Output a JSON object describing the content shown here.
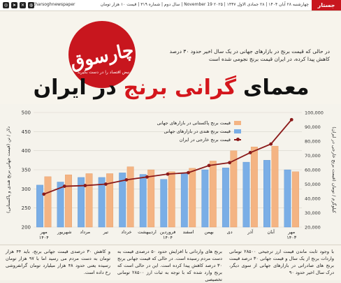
{
  "topbar": {
    "handle": "Charsoghnewspaper",
    "dateline": "چهارشنبه ۲۸ آبان ۱۴۰۴ | ۲۸ جمادی الاول ۱۴۴۷ | ۲۰۲۵ November 19 | سال دوم | شماره ۳۱۹ | قیمت ۱۰ هزار تومان",
    "tag": "جستار",
    "icon_names": [
      "instagram-icon",
      "telegram-icon",
      "x-icon",
      "web-icon"
    ]
  },
  "logo": {
    "name": "چارسوق",
    "slogan": "نبض اقتصاد را در دست بگیرید"
  },
  "lede": "در حالی که قیمت برنج در بازارهای جهانی در یک سال اخیر حدود ۳۰ درصد کاهش پیدا کرده، در ایران قیمت برنج نجومی شده است",
  "headline": {
    "part1": "معمای",
    "accent": "گرانی برنج",
    "part2": "در ایران"
  },
  "chart_data": {
    "type": "bar",
    "categories": [
      "مهر ۱۴۰۳",
      "آبان",
      "آذر",
      "دی",
      "بهمن",
      "اسفند",
      "فروردین ۱۴۰۴",
      "اردیبهشت",
      "خرداد",
      "تیر",
      "مرداد",
      "شهریور",
      "مهر ۱۴۰۴"
    ],
    "category_order": "right-to-left",
    "y_left": {
      "label": "دلار / تن (قیمت جهانی برنج هندی و پاکستانی)",
      "ticks": [
        200,
        250,
        300,
        350,
        400,
        450,
        500
      ],
      "lim": [
        200,
        500
      ]
    },
    "y_right": {
      "label": "کیلوگرم / تومان (قیمت برنج خارجی در ایران)",
      "ticks": [
        20000,
        30000,
        40000,
        50000,
        60000,
        70000,
        80000,
        90000,
        100000
      ],
      "lim": [
        20000,
        100000
      ]
    },
    "series": [
      {
        "name": "قیمت برنج پاکستانی در بازارهای جهانی",
        "axis": "left",
        "color": "#f4b483",
        "values": [
          345,
          412,
          410,
          400,
          373,
          354,
          345,
          350,
          358,
          340,
          340,
          337,
          332
        ]
      },
      {
        "name": "قیمت برنج هندی در بازارهای جهانی",
        "axis": "left",
        "color": "#7aaee6",
        "values": [
          350,
          375,
          370,
          355,
          350,
          340,
          325,
          338,
          342,
          330,
          330,
          318,
          310
        ]
      },
      {
        "name": "قیمت برنج خارجی در ایران",
        "axis": "right",
        "color": "#8b1a1a",
        "type": "line",
        "values": [
          95000,
          78000,
          72000,
          65000,
          63000,
          58000,
          57000,
          55000,
          53000,
          50000,
          49000,
          48500,
          43000
        ]
      }
    ],
    "grid": true,
    "legend": "top-center"
  },
  "columns": [
    "با وجود ثابت ماندن قیمت ارز ترجیحی ۲۸۵۰۰ تومانی واردات برنج از یک سال و قیمت جهانی ۳۰ درصد قیمت برنج های صادراتی در بازارهای جهانی از سوی دیگر، درک سال اخیر حدود ۹۰",
    "برنج های وارداتی با افزایش حدود ۵۰ درصدی قیمت به دست مردم رسیده است. در حالی که قیمت جهانی برنج ۳۰ درصد کاهش پیدا کرده است. این در حالی است که برنج وارد شده که با توجه به ثبات ارز ۲۸۵۰۰ تومانی تخصیصی",
    "و کاهش ۳۰ درصدی قیمت جهانی برنج، باید ۴۴ هزار تومان به دست مردم می رسید اما با ۹۷ هزار تومان رسیده یعنی حدود ۴۸ هزار میلیارد تومان گرانفروشی رخ داده است."
  ]
}
